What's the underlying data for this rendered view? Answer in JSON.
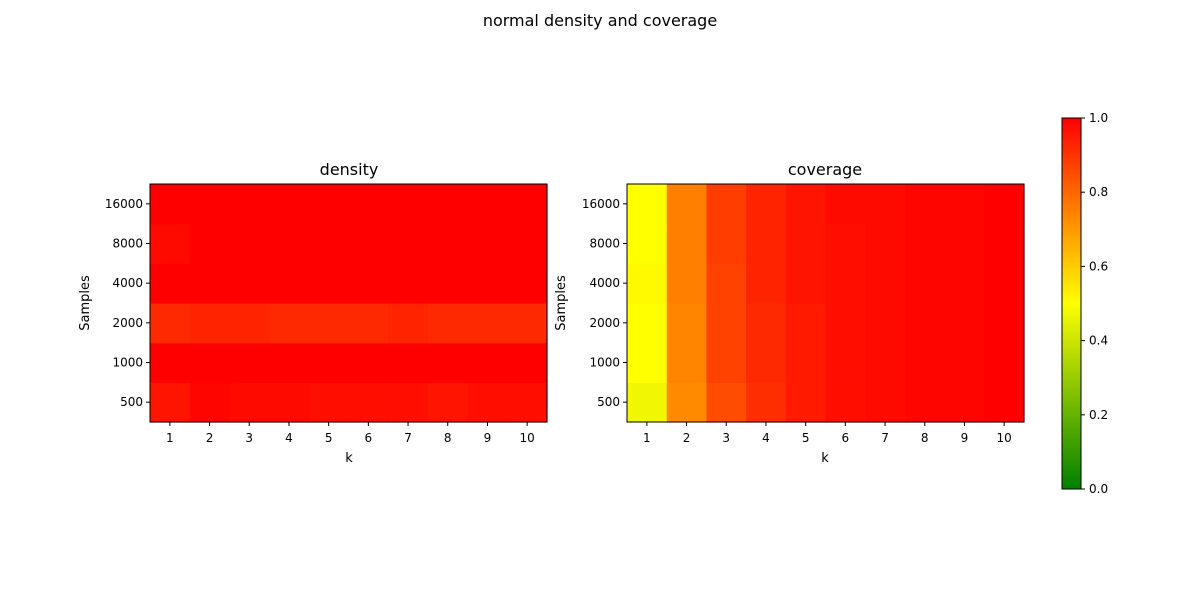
{
  "figure": {
    "title": "normal density and coverage"
  },
  "colorbar": {
    "min": 0.0,
    "max": 1.0,
    "ticks": [
      "0.0",
      "0.2",
      "0.4",
      "0.6",
      "0.8",
      "1.0"
    ],
    "colormap": [
      "#008000",
      "#ffff00",
      "#ff0000"
    ]
  },
  "chart_data": [
    {
      "type": "heatmap",
      "title": "density",
      "xlabel": "k",
      "ylabel": "Samples",
      "x": [
        "1",
        "2",
        "3",
        "4",
        "5",
        "6",
        "7",
        "8",
        "9",
        "10"
      ],
      "y": [
        "500",
        "1000",
        "2000",
        "4000",
        "8000",
        "16000"
      ],
      "values": [
        [
          0.96,
          0.99,
          0.98,
          0.98,
          0.97,
          0.97,
          0.97,
          0.96,
          0.97,
          0.97
        ],
        [
          1.0,
          1.0,
          1.0,
          1.0,
          1.0,
          1.0,
          1.0,
          1.0,
          1.0,
          1.0
        ],
        [
          0.92,
          0.93,
          0.93,
          0.92,
          0.92,
          0.92,
          0.93,
          0.92,
          0.92,
          0.92
        ],
        [
          1.0,
          1.0,
          1.0,
          1.0,
          1.0,
          1.0,
          1.0,
          1.0,
          1.0,
          1.0
        ],
        [
          0.98,
          1.0,
          1.0,
          1.0,
          1.0,
          1.0,
          1.0,
          1.0,
          1.0,
          1.0
        ],
        [
          1.0,
          1.0,
          1.0,
          1.0,
          1.0,
          1.0,
          1.0,
          1.0,
          1.0,
          1.0
        ]
      ]
    },
    {
      "type": "heatmap",
      "title": "coverage",
      "xlabel": "k",
      "ylabel": "Samples",
      "x": [
        "1",
        "2",
        "3",
        "4",
        "5",
        "6",
        "7",
        "8",
        "9",
        "10"
      ],
      "y": [
        "500",
        "1000",
        "2000",
        "4000",
        "8000",
        "16000"
      ],
      "values": [
        [
          0.47,
          0.73,
          0.85,
          0.91,
          0.95,
          0.97,
          0.98,
          0.99,
          0.99,
          1.0
        ],
        [
          0.5,
          0.74,
          0.87,
          0.92,
          0.95,
          0.97,
          0.98,
          0.99,
          0.99,
          1.0
        ],
        [
          0.5,
          0.74,
          0.87,
          0.92,
          0.95,
          0.97,
          0.98,
          0.99,
          0.99,
          1.0
        ],
        [
          0.51,
          0.75,
          0.87,
          0.93,
          0.96,
          0.97,
          0.98,
          0.99,
          0.99,
          1.0
        ],
        [
          0.5,
          0.75,
          0.88,
          0.93,
          0.96,
          0.97,
          0.98,
          0.99,
          0.99,
          1.0
        ],
        [
          0.5,
          0.75,
          0.88,
          0.93,
          0.96,
          0.98,
          0.98,
          0.99,
          0.99,
          1.0
        ]
      ]
    }
  ]
}
